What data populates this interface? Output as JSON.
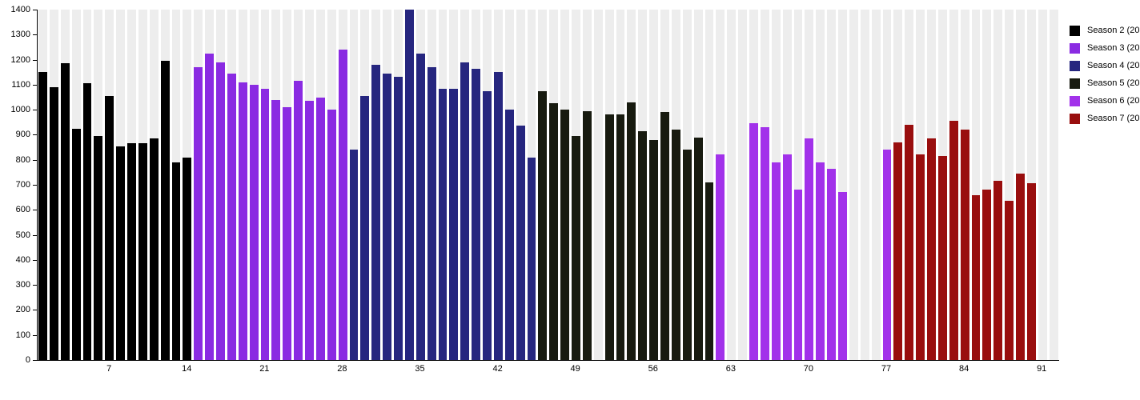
{
  "chart_data": {
    "type": "bar",
    "title": "",
    "xlabel": "",
    "ylabel": "",
    "ylim": [
      0,
      1400
    ],
    "y_ticks": [
      0,
      100,
      200,
      300,
      400,
      500,
      600,
      700,
      800,
      900,
      1000,
      1100,
      1200,
      1300,
      1400
    ],
    "x_ticks": [
      7,
      14,
      21,
      28,
      35,
      42,
      49,
      56,
      63,
      70,
      77,
      84,
      91
    ],
    "x_range": [
      1,
      92
    ],
    "grid": "off",
    "legend_position": "right",
    "background_stripe_color": "#ededed",
    "missing_episodes": [
      51,
      63,
      64,
      74,
      75,
      76,
      91,
      92
    ],
    "series": [
      {
        "name": "Season 2 (20",
        "color": "#000000",
        "start_episode": 1,
        "values": [
          1150,
          1090,
          1185,
          925,
          1105,
          895,
          1055,
          855,
          865,
          865,
          885,
          1195,
          790,
          810
        ]
      },
      {
        "name": "Season 3 (20",
        "color": "#8a2be2",
        "start_episode": 15,
        "values": [
          1170,
          1225,
          1190,
          1145,
          1110,
          1100,
          1085,
          1040,
          1010,
          1115,
          1035,
          1050,
          1000,
          1240
        ]
      },
      {
        "name": "Season 4 (20",
        "color": "#26267f",
        "start_episode": 29,
        "values": [
          840,
          1055,
          1180,
          1145,
          1130,
          1400,
          1225,
          1170,
          1085,
          1085,
          1190,
          1165,
          1075,
          1150,
          1000,
          935,
          810
        ]
      },
      {
        "name": "Season 5 (20",
        "color": "#181b10",
        "start_episode": 46,
        "values": [
          1075,
          1025,
          1000,
          895,
          995,
          null,
          980,
          980,
          1030,
          915,
          880,
          990,
          920,
          840,
          890,
          710
        ]
      },
      {
        "name": "Season 6 (20",
        "color": "#a232ea",
        "start_episode": 62,
        "values": [
          820,
          null,
          null,
          945,
          930,
          790,
          820,
          680,
          885,
          790,
          765,
          670,
          null,
          null,
          null,
          840
        ]
      },
      {
        "name": "Season 7 (20",
        "color": "#990e0e",
        "start_episode": 78,
        "values": [
          870,
          940,
          820,
          885,
          815,
          955,
          920,
          660,
          680,
          715,
          635,
          745,
          705
        ]
      }
    ]
  }
}
